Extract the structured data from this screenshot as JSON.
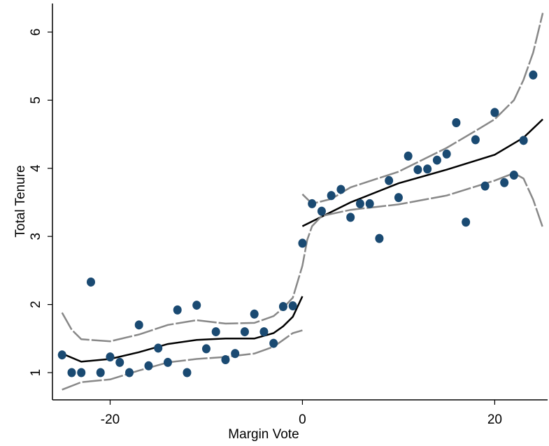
{
  "chart_data": {
    "type": "scatter",
    "x_label": "Margin Vote",
    "y_label": "Total Tenure",
    "xlim": [
      -26,
      25.5
    ],
    "ylim": [
      0.6,
      6.42
    ],
    "xticks": [
      -20,
      0,
      20
    ],
    "yticks": [
      1,
      2,
      3,
      4,
      5,
      6
    ],
    "series": [
      {
        "type": "scatter",
        "color": "#1a4a72",
        "x": [
          -25,
          -24,
          -23,
          -22,
          -21,
          -20,
          -19,
          -18,
          -17,
          -16,
          -15,
          -14,
          -13,
          -12,
          -11,
          -10,
          -9,
          -8,
          -7,
          -6,
          -5,
          -4,
          -3,
          -2,
          -1,
          0,
          1,
          2,
          3,
          4,
          5,
          6,
          7,
          8,
          9,
          10,
          11,
          12,
          13,
          14,
          15,
          16,
          17,
          18,
          19,
          20,
          21,
          22,
          23,
          24
        ],
        "values": [
          1.26,
          1.0,
          1.0,
          2.33,
          1.0,
          1.23,
          1.15,
          1.0,
          1.7,
          1.1,
          1.36,
          1.15,
          1.92,
          1.0,
          1.99,
          1.35,
          1.6,
          1.19,
          1.28,
          1.6,
          1.86,
          1.6,
          1.43,
          1.97,
          1.98,
          2.9,
          3.48,
          3.37,
          3.6,
          3.69,
          3.28,
          3.48,
          3.48,
          2.97,
          3.82,
          3.57,
          4.18,
          3.98,
          3.99,
          4.12,
          4.21,
          4.67,
          3.21,
          4.42,
          3.74,
          4.82,
          3.79,
          3.9,
          4.41,
          5.37
        ]
      },
      {
        "type": "line",
        "color": "#000000",
        "x": [
          -25,
          -23,
          -20,
          -17,
          -14,
          -11,
          -8,
          -5,
          -3,
          -2,
          -1,
          0
        ],
        "values": [
          1.28,
          1.16,
          1.2,
          1.3,
          1.42,
          1.48,
          1.5,
          1.5,
          1.58,
          1.68,
          1.82,
          2.12
        ]
      },
      {
        "type": "line",
        "color": "#000000",
        "x": [
          0,
          5,
          10,
          15,
          20,
          23,
          25
        ],
        "values": [
          3.15,
          3.5,
          3.78,
          3.98,
          4.2,
          4.45,
          4.72
        ]
      },
      {
        "type": "line",
        "color": "#888888",
        "dashed": true,
        "x": [
          -25,
          -24,
          -23,
          -20,
          -17,
          -14,
          -11,
          -8,
          -5,
          -3,
          -2,
          -1,
          0,
          0.5,
          1,
          2,
          5,
          10,
          15,
          20,
          22,
          23,
          24,
          25
        ],
        "values": [
          1.88,
          1.63,
          1.49,
          1.46,
          1.56,
          1.7,
          1.77,
          1.72,
          1.73,
          1.83,
          1.95,
          2.1,
          2.57,
          2.95,
          3.15,
          3.3,
          3.39,
          3.47,
          3.6,
          3.82,
          3.93,
          3.85,
          3.54,
          3.13
        ]
      },
      {
        "type": "line",
        "color": "#888888",
        "dashed": true,
        "x": [
          -25,
          -23,
          -20,
          -17,
          -14,
          -11,
          -8,
          -5,
          -3,
          -2,
          -1,
          0
        ],
        "values": [
          0.75,
          0.86,
          0.9,
          1.03,
          1.15,
          1.2,
          1.23,
          1.28,
          1.38,
          1.48,
          1.58,
          1.62
        ]
      },
      {
        "type": "line",
        "color": "#888888",
        "dashed": true,
        "x": [
          0,
          1,
          3,
          5,
          10,
          15,
          18,
          20,
          22,
          23,
          24,
          25
        ],
        "values": [
          3.62,
          3.48,
          3.55,
          3.72,
          3.95,
          4.3,
          4.55,
          4.72,
          5.0,
          5.3,
          5.7,
          6.28
        ]
      }
    ]
  }
}
